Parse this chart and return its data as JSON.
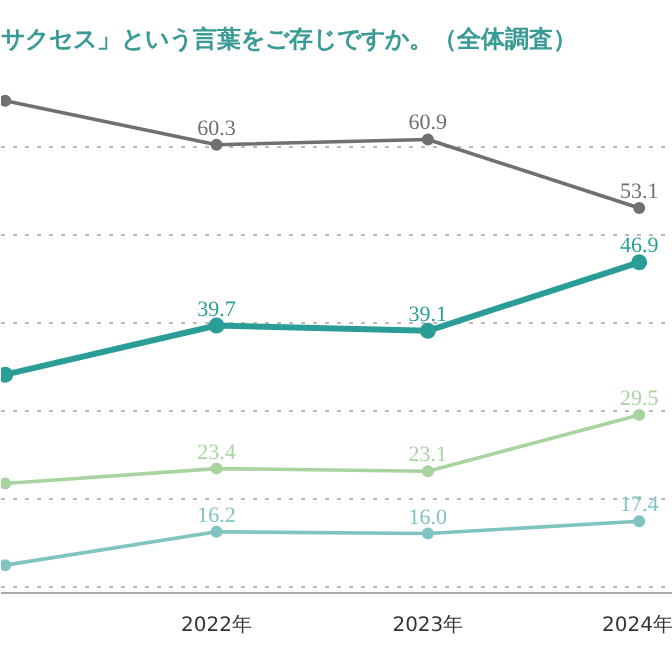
{
  "chart_data": {
    "type": "line",
    "title": "サクセス」という言葉をご存じですか。（全体調査）",
    "categories": [
      null,
      "2022年",
      "2023年",
      "2024年"
    ],
    "series": [
      {
        "color": "#707070",
        "values": [
          65.3,
          60.3,
          60.9,
          53.1
        ],
        "value_labels": [
          null,
          "60.3",
          "60.9",
          "53.1"
        ]
      },
      {
        "color": "#2a9d96",
        "values": [
          34.1,
          39.7,
          39.1,
          46.9
        ],
        "value_labels": [
          null,
          "39.7",
          "39.1",
          "46.9"
        ]
      },
      {
        "color": "#a9d3a0",
        "values": [
          21.7,
          23.4,
          23.1,
          29.5
        ],
        "value_labels": [
          null,
          "23.4",
          "23.1",
          "29.5"
        ]
      },
      {
        "color": "#7fc4c0",
        "values": [
          12.4,
          16.2,
          16.0,
          17.4
        ],
        "value_labels": [
          null,
          "16.2",
          "16.0",
          "17.4"
        ]
      }
    ],
    "tick_labels": "x",
    "grid": "y",
    "marker": "circle",
    "line_style": "solid"
  }
}
